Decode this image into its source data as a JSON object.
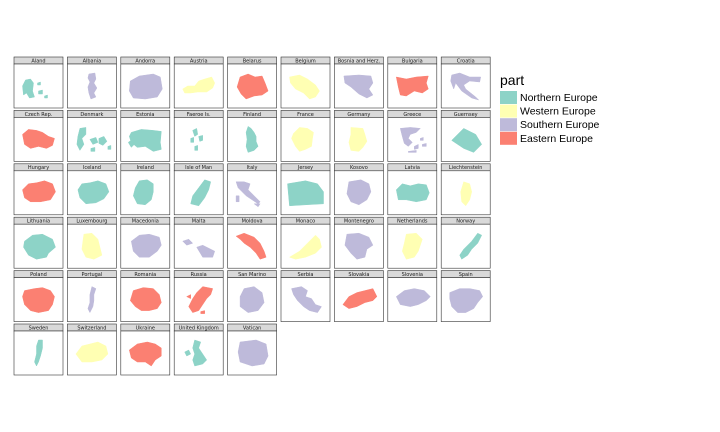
{
  "chart_data": {
    "type": "map",
    "legend": {
      "title": "part",
      "placement": "right",
      "items": [
        {
          "label": "Northern Europe",
          "color": "#8dd3c7"
        },
        {
          "label": "Western Europe",
          "color": "#ffffb3"
        },
        {
          "label": "Southern Europe",
          "color": "#bebada"
        },
        {
          "label": "Eastern Europe",
          "color": "#fb8072"
        }
      ]
    },
    "panels": [
      {
        "name": "Aland",
        "part": "Northern Europe",
        "shape": "aland"
      },
      {
        "name": "Albania",
        "part": "Southern Europe",
        "shape": "albania"
      },
      {
        "name": "Andorra",
        "part": "Southern Europe",
        "shape": "andorra"
      },
      {
        "name": "Austria",
        "part": "Western Europe",
        "shape": "austria"
      },
      {
        "name": "Belarus",
        "part": "Eastern Europe",
        "shape": "belarus"
      },
      {
        "name": "Belgium",
        "part": "Western Europe",
        "shape": "belgium"
      },
      {
        "name": "Bosnia and Herz.",
        "part": "Southern Europe",
        "shape": "bosnia"
      },
      {
        "name": "Bulgaria",
        "part": "Eastern Europe",
        "shape": "bulgaria"
      },
      {
        "name": "Croatia",
        "part": "Southern Europe",
        "shape": "croatia"
      },
      {
        "name": "Czech Rep.",
        "part": "Eastern Europe",
        "shape": "czech"
      },
      {
        "name": "Denmark",
        "part": "Northern Europe",
        "shape": "denmark"
      },
      {
        "name": "Estonia",
        "part": "Northern Europe",
        "shape": "estonia"
      },
      {
        "name": "Faeroe Is.",
        "part": "Northern Europe",
        "shape": "faeroe"
      },
      {
        "name": "Finland",
        "part": "Northern Europe",
        "shape": "finland"
      },
      {
        "name": "France",
        "part": "Western Europe",
        "shape": "france"
      },
      {
        "name": "Germany",
        "part": "Western Europe",
        "shape": "germany"
      },
      {
        "name": "Greece",
        "part": "Southern Europe",
        "shape": "greece"
      },
      {
        "name": "Guernsey",
        "part": "Northern Europe",
        "shape": "guernsey"
      },
      {
        "name": "Hungary",
        "part": "Eastern Europe",
        "shape": "hungary"
      },
      {
        "name": "Iceland",
        "part": "Northern Europe",
        "shape": "iceland"
      },
      {
        "name": "Ireland",
        "part": "Northern Europe",
        "shape": "ireland"
      },
      {
        "name": "Isle of Man",
        "part": "Northern Europe",
        "shape": "isleofman"
      },
      {
        "name": "Italy",
        "part": "Southern Europe",
        "shape": "italy"
      },
      {
        "name": "Jersey",
        "part": "Northern Europe",
        "shape": "jersey"
      },
      {
        "name": "Kosovo",
        "part": "Southern Europe",
        "shape": "kosovo"
      },
      {
        "name": "Latvia",
        "part": "Northern Europe",
        "shape": "latvia"
      },
      {
        "name": "Liechtenstein",
        "part": "Western Europe",
        "shape": "liechtenstein"
      },
      {
        "name": "Lithuania",
        "part": "Northern Europe",
        "shape": "lithuania"
      },
      {
        "name": "Luxembourg",
        "part": "Western Europe",
        "shape": "luxembourg"
      },
      {
        "name": "Macedonia",
        "part": "Southern Europe",
        "shape": "macedonia"
      },
      {
        "name": "Malta",
        "part": "Southern Europe",
        "shape": "malta"
      },
      {
        "name": "Moldova",
        "part": "Eastern Europe",
        "shape": "moldova"
      },
      {
        "name": "Monaco",
        "part": "Western Europe",
        "shape": "monaco"
      },
      {
        "name": "Montenegro",
        "part": "Southern Europe",
        "shape": "montenegro"
      },
      {
        "name": "Netherlands",
        "part": "Western Europe",
        "shape": "netherlands"
      },
      {
        "name": "Norway",
        "part": "Northern Europe",
        "shape": "norway"
      },
      {
        "name": "Poland",
        "part": "Eastern Europe",
        "shape": "poland"
      },
      {
        "name": "Portugal",
        "part": "Southern Europe",
        "shape": "portugal"
      },
      {
        "name": "Romania",
        "part": "Eastern Europe",
        "shape": "romania"
      },
      {
        "name": "Russia",
        "part": "Eastern Europe",
        "shape": "russia"
      },
      {
        "name": "San Marino",
        "part": "Southern Europe",
        "shape": "sanmarino"
      },
      {
        "name": "Serbia",
        "part": "Southern Europe",
        "shape": "serbia"
      },
      {
        "name": "Slovakia",
        "part": "Eastern Europe",
        "shape": "slovakia"
      },
      {
        "name": "Slovenia",
        "part": "Southern Europe",
        "shape": "slovenia"
      },
      {
        "name": "Spain",
        "part": "Southern Europe",
        "shape": "spain"
      },
      {
        "name": "Sweden",
        "part": "Northern Europe",
        "shape": "sweden"
      },
      {
        "name": "Switzerland",
        "part": "Western Europe",
        "shape": "switzerland"
      },
      {
        "name": "Ukraine",
        "part": "Eastern Europe",
        "shape": "ukraine"
      },
      {
        "name": "United Kingdom",
        "part": "Northern Europe",
        "shape": "uk"
      },
      {
        "name": "Vatican",
        "part": "Southern Europe",
        "shape": "vatican"
      }
    ]
  }
}
